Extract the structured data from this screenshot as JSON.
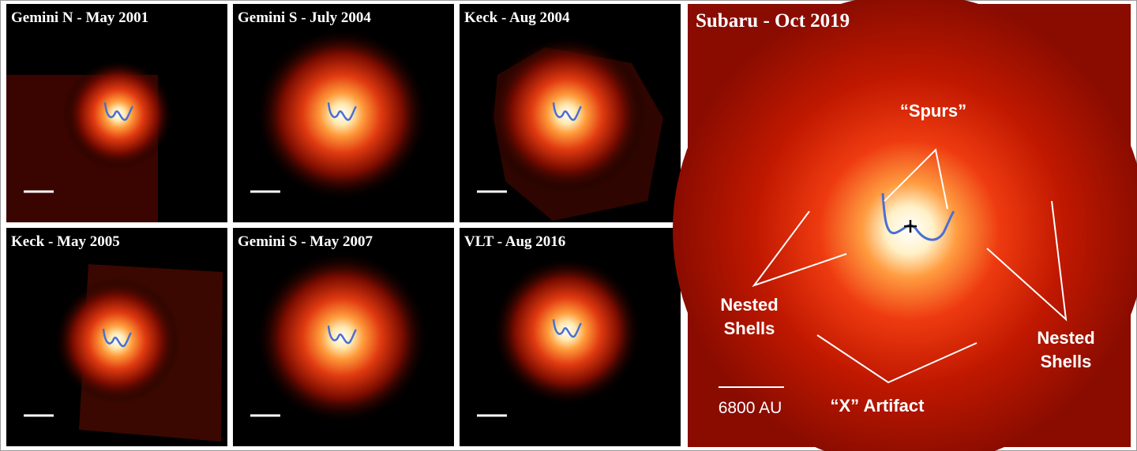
{
  "panels": [
    {
      "title": "Gemini N - May 2001"
    },
    {
      "title": "Gemini S - July 2004"
    },
    {
      "title": "Keck - Aug 2004"
    },
    {
      "title": "Keck - May 2005"
    },
    {
      "title": "Gemini S - May 2007"
    },
    {
      "title": "VLT - Aug 2016"
    }
  ],
  "main": {
    "title": "Subaru - Oct 2019",
    "spurs": "“Spurs”",
    "nested_left": [
      "Nested",
      "Shells"
    ],
    "nested_right": [
      "Nested",
      "Shells"
    ],
    "artifact": "“X” Artifact",
    "scale": "6800 AU"
  }
}
